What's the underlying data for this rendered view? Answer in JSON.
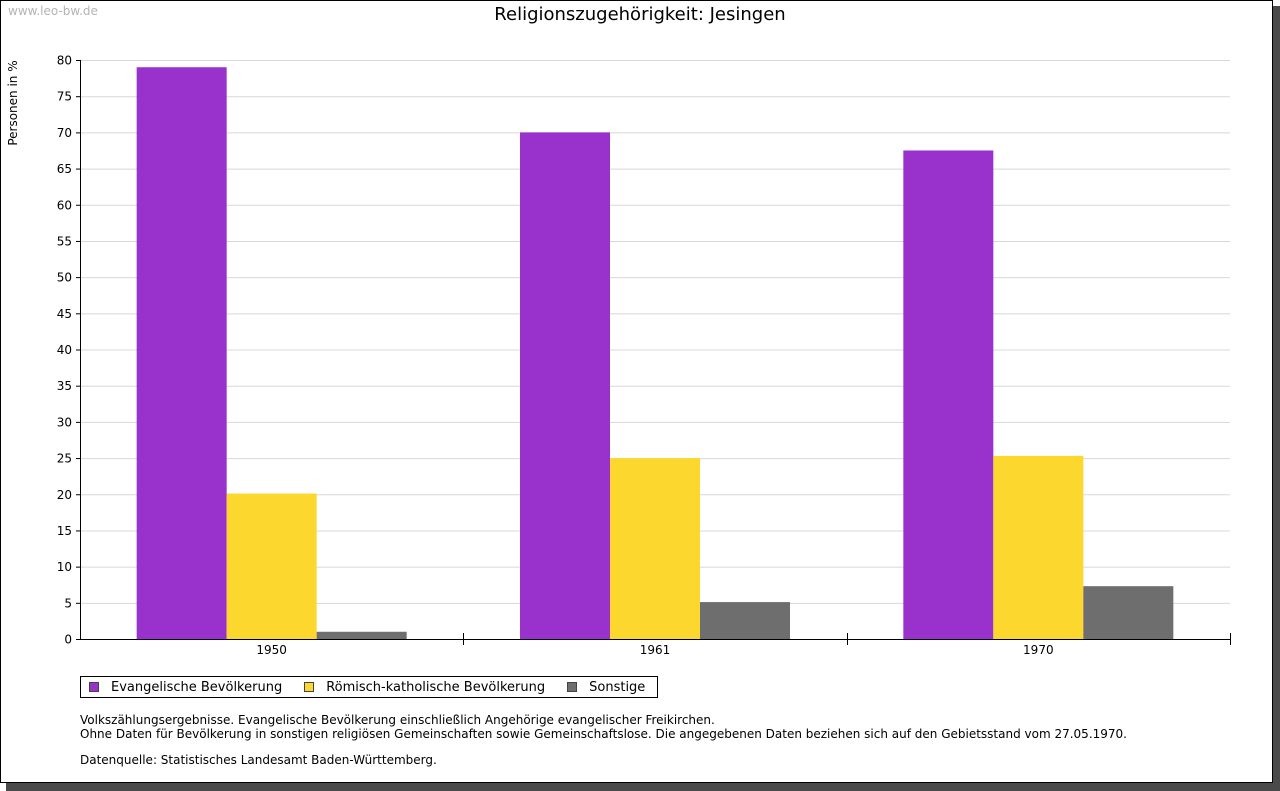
{
  "watermark": "www.leo-bw.de",
  "chart_data": {
    "type": "bar",
    "title": "Religionszugehörigkeit: Jesingen",
    "xlabel": "",
    "ylabel": "Personen in %",
    "categories": [
      "1950",
      "1961",
      "1970"
    ],
    "series": [
      {
        "name": "Evangelische Bevölkerung",
        "color": "#9932cc",
        "values": [
          79.0,
          70.0,
          67.5
        ]
      },
      {
        "name": "Römisch-katholische Bevölkerung",
        "color": "#fcd72e",
        "values": [
          20.1,
          25.0,
          25.3
        ]
      },
      {
        "name": "Sonstige",
        "color": "#6e6e6e",
        "values": [
          1.0,
          5.1,
          7.3
        ]
      }
    ],
    "ylim": [
      0,
      80
    ],
    "yticks": [
      0,
      5,
      10,
      15,
      20,
      25,
      30,
      35,
      40,
      45,
      50,
      55,
      60,
      65,
      70,
      75,
      80
    ],
    "grid": true,
    "legend_position": "bottom-left"
  },
  "notes": {
    "line1": "Volkszählungsergebnisse. Evangelische Bevölkerung einschließlich Angehörige evangelischer Freikirchen.",
    "line2": "Ohne Daten für Bevölkerung in sonstigen religiösen Gemeinschaften sowie Gemeinschaftslose. Die angegebenen Daten beziehen sich auf den Gebietsstand vom 27.05.1970.",
    "source": "Datenquelle: Statistisches Landesamt Baden-Württemberg."
  }
}
